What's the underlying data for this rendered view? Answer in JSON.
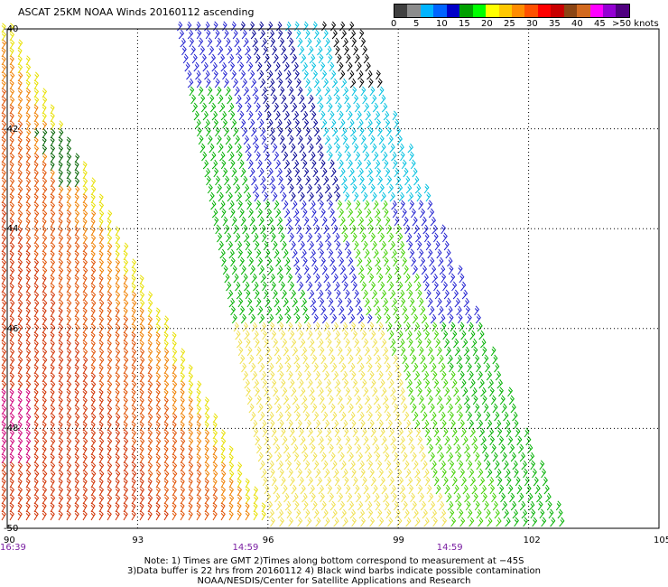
{
  "title": "ASCAT 25KM NOAA Winds 20160112 ascending",
  "legend": {
    "labels": [
      "0",
      "5",
      "10",
      "15",
      "20",
      "25",
      "30",
      "35",
      "40",
      "45",
      ">50 knots"
    ],
    "colors": [
      "#404040",
      "#8c8c8c",
      "#00b4ff",
      "#0064ff",
      "#0000c8",
      "#00a000",
      "#00ff00",
      "#ffff00",
      "#ffc800",
      "#ff8c00",
      "#ff5000",
      "#ff0000",
      "#c80000",
      "#8b4513",
      "#d2691e",
      "#ff00ff",
      "#9400d3",
      "#500080"
    ]
  },
  "map": {
    "lat_labels": [
      "-40",
      "-42",
      "-44",
      "-46",
      "-48",
      "-50"
    ],
    "lon_labels": [
      "90",
      "93",
      "96",
      "99",
      "102",
      "105"
    ],
    "time_labels": [
      {
        "text": "16:39",
        "lon": 90
      },
      {
        "text": "14:59",
        "lon": 95.35
      },
      {
        "text": "14:59",
        "lon": 100.05
      }
    ],
    "lat_range": [
      -50,
      -40
    ],
    "lon_range": [
      90,
      105
    ]
  },
  "notes": [
    "Note: 1) Times are GMT 2)Times along bottom correspond to measurement at −45S",
    "3)Data buffer is 22 hrs from 20160112 4) Black wind barbs indicate possible contamination",
    "NOAA/NESDIS/Center for Satellite Applications and Research"
  ]
}
